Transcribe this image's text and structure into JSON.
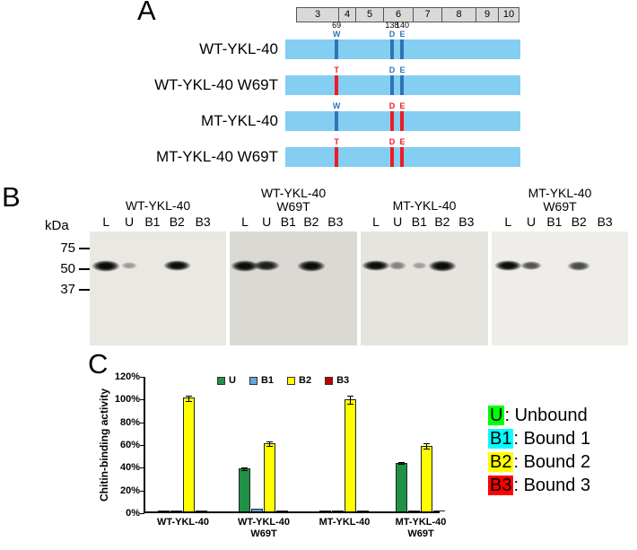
{
  "figure": {
    "panel_a": {
      "label": "A",
      "exon_labels": [
        "3",
        "4",
        "5",
        "6",
        "7",
        "8",
        "9",
        "10"
      ],
      "bar_color": "#84cef2",
      "constructs": [
        {
          "name": "WT-YKL-40",
          "show_residue_numbers": true,
          "marks": [
            {
              "residue": "69",
              "letter": "W",
              "color": "#2e75b6"
            },
            {
              "residue": "138",
              "letter": "D",
              "color": "#2e75b6"
            },
            {
              "residue": "140",
              "letter": "E",
              "color": "#2e75b6"
            }
          ]
        },
        {
          "name": "WT-YKL-40 W69T",
          "show_residue_numbers": false,
          "marks": [
            {
              "residue": "69",
              "letter": "T",
              "color": "#ed1c24"
            },
            {
              "residue": "138",
              "letter": "D",
              "color": "#2e75b6"
            },
            {
              "residue": "140",
              "letter": "E",
              "color": "#2e75b6"
            }
          ]
        },
        {
          "name": "MT-YKL-40",
          "show_residue_numbers": false,
          "marks": [
            {
              "residue": "69",
              "letter": "W",
              "color": "#2e75b6"
            },
            {
              "residue": "138",
              "letter": "D",
              "color": "#ed1c24"
            },
            {
              "residue": "140",
              "letter": "E",
              "color": "#ed1c24"
            }
          ]
        },
        {
          "name": "MT-YKL-40 W69T",
          "show_residue_numbers": false,
          "marks": [
            {
              "residue": "69",
              "letter": "T",
              "color": "#ed1c24"
            },
            {
              "residue": "138",
              "letter": "D",
              "color": "#ed1c24"
            },
            {
              "residue": "140",
              "letter": "E",
              "color": "#ed1c24"
            }
          ]
        }
      ]
    },
    "panel_b": {
      "label": "B",
      "unit_label": "kDa",
      "marker_labels": [
        "75",
        "50",
        "37"
      ],
      "lane_labels": [
        "L",
        "U",
        "B1",
        "B2",
        "B3"
      ],
      "blots": [
        {
          "title_lines": [
            "WT-YKL-40"
          ],
          "tint": "#eae8e3",
          "band_intensities": [
            1,
            0.12,
            0,
            0.95,
            0
          ]
        },
        {
          "title_lines": [
            "WT-YKL-40",
            "W69T"
          ],
          "tint": "#dbd9d4",
          "band_intensities": [
            1,
            0.85,
            0,
            1,
            0
          ]
        },
        {
          "title_lines": [
            "MT-YKL-40"
          ],
          "tint": "#e6e4df",
          "band_intensities": [
            0.95,
            0.25,
            0.08,
            1,
            0
          ]
        },
        {
          "title_lines": [
            "MT-YKL-40",
            "W69T"
          ],
          "tint": "#efede9",
          "band_intensities": [
            0.95,
            0.55,
            0,
            0.6,
            0
          ]
        }
      ]
    },
    "panel_c": {
      "label": "C",
      "side_legend": [
        {
          "key": "U",
          "highlight": "#00ff00",
          "text": ": Unbound"
        },
        {
          "key": "B1",
          "highlight": "#00ffff",
          "text": ": Bound 1"
        },
        {
          "key": "B2",
          "highlight": "#ffff00",
          "text": ": Bound 2"
        },
        {
          "key": "B3",
          "highlight": "#ff0000",
          "text": ": Bound 3"
        }
      ]
    }
  },
  "chart_data": {
    "type": "bar",
    "title": "",
    "ylabel": "Chitin-binding activity",
    "ylim": [
      0,
      120
    ],
    "yticks": [
      "0%",
      "20%",
      "40%",
      "60%",
      "80%",
      "100%",
      "120%"
    ],
    "grid": false,
    "legend_position": "top-inside",
    "categories": [
      "WT-YKL-40",
      "WT-YKL-40 W69T",
      "MT-YKL-40",
      "MT-YKL-40 W69T"
    ],
    "category_lines": [
      [
        "WT-YKL-40"
      ],
      [
        "WT-YKL-40",
        "W69T"
      ],
      [
        "MT-YKL-40"
      ],
      [
        "MT-YKL-40",
        "W69T"
      ]
    ],
    "series": [
      {
        "name": "U",
        "color": "#1f9246",
        "values": [
          1,
          38,
          1,
          43
        ],
        "errors": [
          0.5,
          1.5,
          0.5,
          1.5
        ]
      },
      {
        "name": "B1",
        "color": "#6aa5d8",
        "values": [
          0.5,
          2,
          0.5,
          1
        ],
        "errors": [
          0,
          0,
          0,
          0
        ]
      },
      {
        "name": "B2",
        "color": "#ffff00",
        "values": [
          100,
          60,
          99,
          58
        ],
        "errors": [
          3,
          2,
          4,
          3
        ]
      },
      {
        "name": "B3",
        "color": "#c00000",
        "values": [
          0.5,
          0.5,
          0.5,
          0.5
        ],
        "errors": [
          0,
          0,
          0,
          0
        ]
      }
    ]
  }
}
